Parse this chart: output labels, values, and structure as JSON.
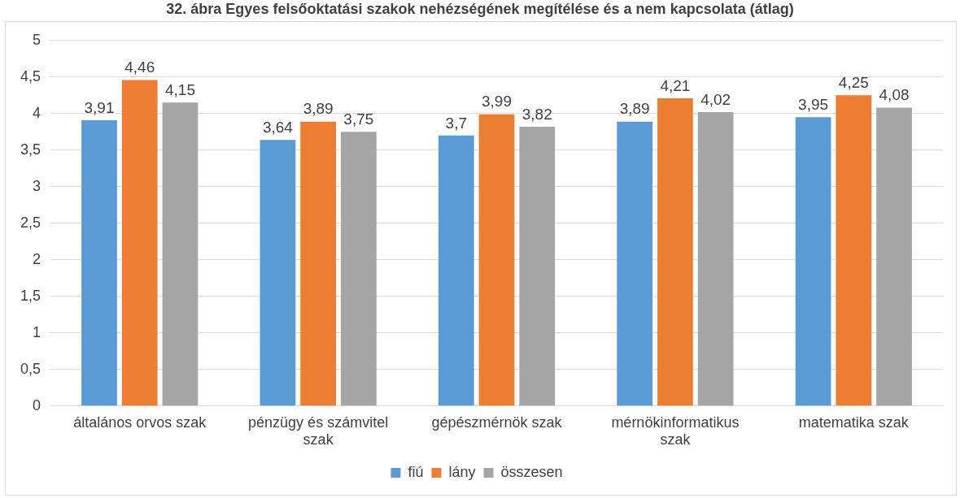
{
  "chart_data": {
    "type": "bar",
    "title": "32. ábra Egyes felsőoktatási szakok nehézségének megítélése és a nem kapcsolata (átlag)",
    "categories": [
      "általános orvos szak",
      "pénzügy és számvitel szak",
      "gépészmérnök szak",
      "mérnökinformatikus szak",
      "matematika szak"
    ],
    "series": [
      {
        "name": "fiú",
        "color": "#5b9bd5",
        "values": [
          3.91,
          3.64,
          3.7,
          3.89,
          3.95
        ],
        "value_labels": [
          "3,91",
          "3,64",
          "3,7",
          "3,89",
          "3,95"
        ]
      },
      {
        "name": "lány",
        "color": "#ed7d31",
        "values": [
          4.46,
          3.89,
          3.99,
          4.21,
          4.25
        ],
        "value_labels": [
          "4,46",
          "3,89",
          "3,99",
          "4,21",
          "4,25"
        ]
      },
      {
        "name": "összesen",
        "color": "#a5a5a5",
        "values": [
          4.15,
          3.75,
          3.82,
          4.02,
          4.08
        ],
        "value_labels": [
          "4,15",
          "3,75",
          "3,82",
          "4,02",
          "4,08"
        ]
      }
    ],
    "ylim": [
      0,
      5
    ],
    "yticks": [
      0,
      {
        "value": 0.5,
        "label": "0,5"
      },
      1,
      {
        "value": 1.5,
        "label": "1,5"
      },
      2,
      {
        "value": 2.5,
        "label": "2,5"
      },
      3,
      {
        "value": 3.5,
        "label": "3,5"
      },
      4,
      {
        "value": 4.5,
        "label": "4,5"
      },
      5
    ],
    "grid": "y",
    "legend": "bottom"
  }
}
